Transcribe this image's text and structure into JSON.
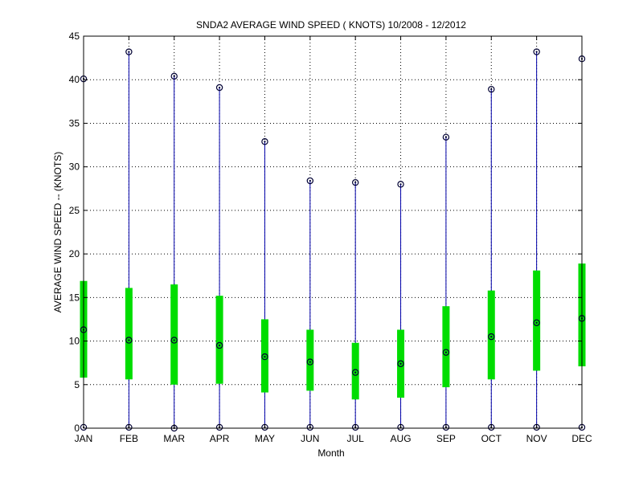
{
  "chart_data": {
    "type": "box",
    "title": "SNDA2  AVERAGE WIND SPEED ( KNOTS) 10/2008 - 12/2012",
    "xlabel": "Month",
    "ylabel": "AVERAGE WIND SPEED -- (KNOTS)",
    "ylim": [
      0,
      45
    ],
    "yticks": [
      0,
      5,
      10,
      15,
      20,
      25,
      30,
      35,
      40,
      45
    ],
    "grid": true,
    "categories": [
      "JAN",
      "FEB",
      "MAR",
      "APR",
      "MAY",
      "JUN",
      "JUL",
      "AUG",
      "SEP",
      "OCT",
      "NOV",
      "DEC"
    ],
    "series": [
      {
        "min": [
          0.1,
          0.1,
          0.0,
          0.1,
          0.1,
          0.1,
          0.1,
          0.1,
          0.1,
          0.1,
          0.1,
          0.1
        ],
        "q1": [
          5.8,
          5.6,
          5.0,
          5.1,
          4.1,
          4.3,
          3.3,
          3.5,
          4.7,
          5.6,
          6.6,
          7.1
        ],
        "median": [
          11.3,
          10.1,
          10.1,
          9.5,
          8.2,
          7.6,
          6.4,
          7.4,
          8.7,
          10.5,
          12.1,
          12.6
        ],
        "q3": [
          16.9,
          16.1,
          16.5,
          15.2,
          12.5,
          11.3,
          9.8,
          11.3,
          14.0,
          15.8,
          18.1,
          18.9
        ],
        "max": [
          40.1,
          43.2,
          40.4,
          39.1,
          32.9,
          28.4,
          28.2,
          28.0,
          33.4,
          38.9,
          43.2,
          42.4
        ]
      }
    ],
    "colors": {
      "whisker": "#0000aa",
      "box": "#00dd00",
      "marker": "#000033",
      "grid": "#000000"
    }
  }
}
